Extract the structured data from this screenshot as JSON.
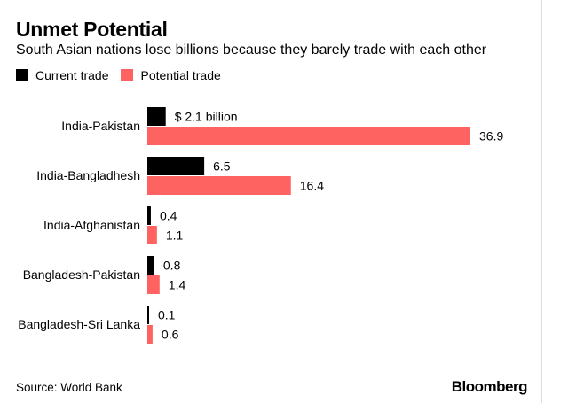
{
  "title": "Unmet Potential",
  "subtitle": "South Asian nations lose billions because they barely trade with each other",
  "source": "Source: World Bank",
  "logo": "Bloomberg",
  "colors": {
    "current": "#000000",
    "potential": "#FF6361"
  },
  "chart_data": {
    "type": "bar",
    "orientation": "horizontal",
    "title": "Unmet Potential",
    "subtitle": "South Asian nations lose billions because they barely trade with each other",
    "categories": [
      "India-Pakistan",
      "India-Bangladhesh",
      "India-Afghanistan",
      "Bangladesh-Pakistan",
      "Bangladesh-Sri Lanka"
    ],
    "series": [
      {
        "name": "Current trade",
        "values": [
          2.1,
          6.5,
          0.4,
          0.8,
          0.1
        ],
        "labels": [
          "$ 2.1 billion",
          "6.5",
          "0.4",
          "0.8",
          "0.1"
        ],
        "color": "#000000"
      },
      {
        "name": "Potential trade",
        "values": [
          36.9,
          16.4,
          1.1,
          1.4,
          0.6
        ],
        "labels": [
          "36.9",
          "16.4",
          "1.1",
          "1.4",
          "0.6"
        ],
        "color": "#FF6361"
      }
    ],
    "unit": "$ billion",
    "xlim": [
      0,
      36.9
    ],
    "grid": false,
    "legend": "top-left"
  }
}
